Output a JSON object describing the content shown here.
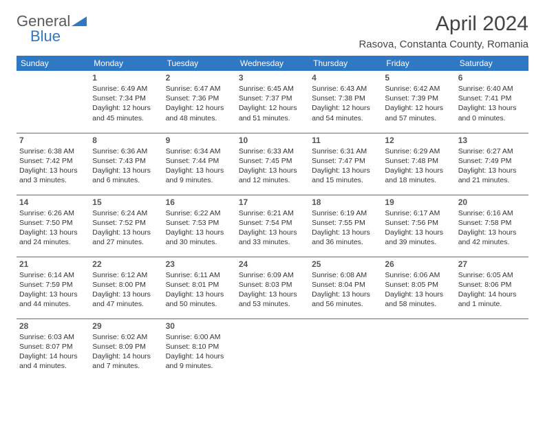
{
  "logo": {
    "general": "General",
    "blue": "Blue"
  },
  "title": "April 2024",
  "location": "Rasova, Constanta County, Romania",
  "dayHeaders": [
    "Sunday",
    "Monday",
    "Tuesday",
    "Wednesday",
    "Thursday",
    "Friday",
    "Saturday"
  ],
  "colors": {
    "headerBg": "#2f78c3",
    "headerText": "#ffffff",
    "border": "#2f78c3",
    "bodyText": "#333333",
    "titleText": "#444444",
    "logoGray": "#5a5a5a",
    "logoBlue": "#2f78c3"
  },
  "weeks": [
    [
      null,
      {
        "n": "1",
        "sunrise": "Sunrise: 6:49 AM",
        "sunset": "Sunset: 7:34 PM",
        "daylight": "Daylight: 12 hours and 45 minutes."
      },
      {
        "n": "2",
        "sunrise": "Sunrise: 6:47 AM",
        "sunset": "Sunset: 7:36 PM",
        "daylight": "Daylight: 12 hours and 48 minutes."
      },
      {
        "n": "3",
        "sunrise": "Sunrise: 6:45 AM",
        "sunset": "Sunset: 7:37 PM",
        "daylight": "Daylight: 12 hours and 51 minutes."
      },
      {
        "n": "4",
        "sunrise": "Sunrise: 6:43 AM",
        "sunset": "Sunset: 7:38 PM",
        "daylight": "Daylight: 12 hours and 54 minutes."
      },
      {
        "n": "5",
        "sunrise": "Sunrise: 6:42 AM",
        "sunset": "Sunset: 7:39 PM",
        "daylight": "Daylight: 12 hours and 57 minutes."
      },
      {
        "n": "6",
        "sunrise": "Sunrise: 6:40 AM",
        "sunset": "Sunset: 7:41 PM",
        "daylight": "Daylight: 13 hours and 0 minutes."
      }
    ],
    [
      {
        "n": "7",
        "sunrise": "Sunrise: 6:38 AM",
        "sunset": "Sunset: 7:42 PM",
        "daylight": "Daylight: 13 hours and 3 minutes."
      },
      {
        "n": "8",
        "sunrise": "Sunrise: 6:36 AM",
        "sunset": "Sunset: 7:43 PM",
        "daylight": "Daylight: 13 hours and 6 minutes."
      },
      {
        "n": "9",
        "sunrise": "Sunrise: 6:34 AM",
        "sunset": "Sunset: 7:44 PM",
        "daylight": "Daylight: 13 hours and 9 minutes."
      },
      {
        "n": "10",
        "sunrise": "Sunrise: 6:33 AM",
        "sunset": "Sunset: 7:45 PM",
        "daylight": "Daylight: 13 hours and 12 minutes."
      },
      {
        "n": "11",
        "sunrise": "Sunrise: 6:31 AM",
        "sunset": "Sunset: 7:47 PM",
        "daylight": "Daylight: 13 hours and 15 minutes."
      },
      {
        "n": "12",
        "sunrise": "Sunrise: 6:29 AM",
        "sunset": "Sunset: 7:48 PM",
        "daylight": "Daylight: 13 hours and 18 minutes."
      },
      {
        "n": "13",
        "sunrise": "Sunrise: 6:27 AM",
        "sunset": "Sunset: 7:49 PM",
        "daylight": "Daylight: 13 hours and 21 minutes."
      }
    ],
    [
      {
        "n": "14",
        "sunrise": "Sunrise: 6:26 AM",
        "sunset": "Sunset: 7:50 PM",
        "daylight": "Daylight: 13 hours and 24 minutes."
      },
      {
        "n": "15",
        "sunrise": "Sunrise: 6:24 AM",
        "sunset": "Sunset: 7:52 PM",
        "daylight": "Daylight: 13 hours and 27 minutes."
      },
      {
        "n": "16",
        "sunrise": "Sunrise: 6:22 AM",
        "sunset": "Sunset: 7:53 PM",
        "daylight": "Daylight: 13 hours and 30 minutes."
      },
      {
        "n": "17",
        "sunrise": "Sunrise: 6:21 AM",
        "sunset": "Sunset: 7:54 PM",
        "daylight": "Daylight: 13 hours and 33 minutes."
      },
      {
        "n": "18",
        "sunrise": "Sunrise: 6:19 AM",
        "sunset": "Sunset: 7:55 PM",
        "daylight": "Daylight: 13 hours and 36 minutes."
      },
      {
        "n": "19",
        "sunrise": "Sunrise: 6:17 AM",
        "sunset": "Sunset: 7:56 PM",
        "daylight": "Daylight: 13 hours and 39 minutes."
      },
      {
        "n": "20",
        "sunrise": "Sunrise: 6:16 AM",
        "sunset": "Sunset: 7:58 PM",
        "daylight": "Daylight: 13 hours and 42 minutes."
      }
    ],
    [
      {
        "n": "21",
        "sunrise": "Sunrise: 6:14 AM",
        "sunset": "Sunset: 7:59 PM",
        "daylight": "Daylight: 13 hours and 44 minutes."
      },
      {
        "n": "22",
        "sunrise": "Sunrise: 6:12 AM",
        "sunset": "Sunset: 8:00 PM",
        "daylight": "Daylight: 13 hours and 47 minutes."
      },
      {
        "n": "23",
        "sunrise": "Sunrise: 6:11 AM",
        "sunset": "Sunset: 8:01 PM",
        "daylight": "Daylight: 13 hours and 50 minutes."
      },
      {
        "n": "24",
        "sunrise": "Sunrise: 6:09 AM",
        "sunset": "Sunset: 8:03 PM",
        "daylight": "Daylight: 13 hours and 53 minutes."
      },
      {
        "n": "25",
        "sunrise": "Sunrise: 6:08 AM",
        "sunset": "Sunset: 8:04 PM",
        "daylight": "Daylight: 13 hours and 56 minutes."
      },
      {
        "n": "26",
        "sunrise": "Sunrise: 6:06 AM",
        "sunset": "Sunset: 8:05 PM",
        "daylight": "Daylight: 13 hours and 58 minutes."
      },
      {
        "n": "27",
        "sunrise": "Sunrise: 6:05 AM",
        "sunset": "Sunset: 8:06 PM",
        "daylight": "Daylight: 14 hours and 1 minute."
      }
    ],
    [
      {
        "n": "28",
        "sunrise": "Sunrise: 6:03 AM",
        "sunset": "Sunset: 8:07 PM",
        "daylight": "Daylight: 14 hours and 4 minutes."
      },
      {
        "n": "29",
        "sunrise": "Sunrise: 6:02 AM",
        "sunset": "Sunset: 8:09 PM",
        "daylight": "Daylight: 14 hours and 7 minutes."
      },
      {
        "n": "30",
        "sunrise": "Sunrise: 6:00 AM",
        "sunset": "Sunset: 8:10 PM",
        "daylight": "Daylight: 14 hours and 9 minutes."
      },
      null,
      null,
      null,
      null
    ]
  ]
}
